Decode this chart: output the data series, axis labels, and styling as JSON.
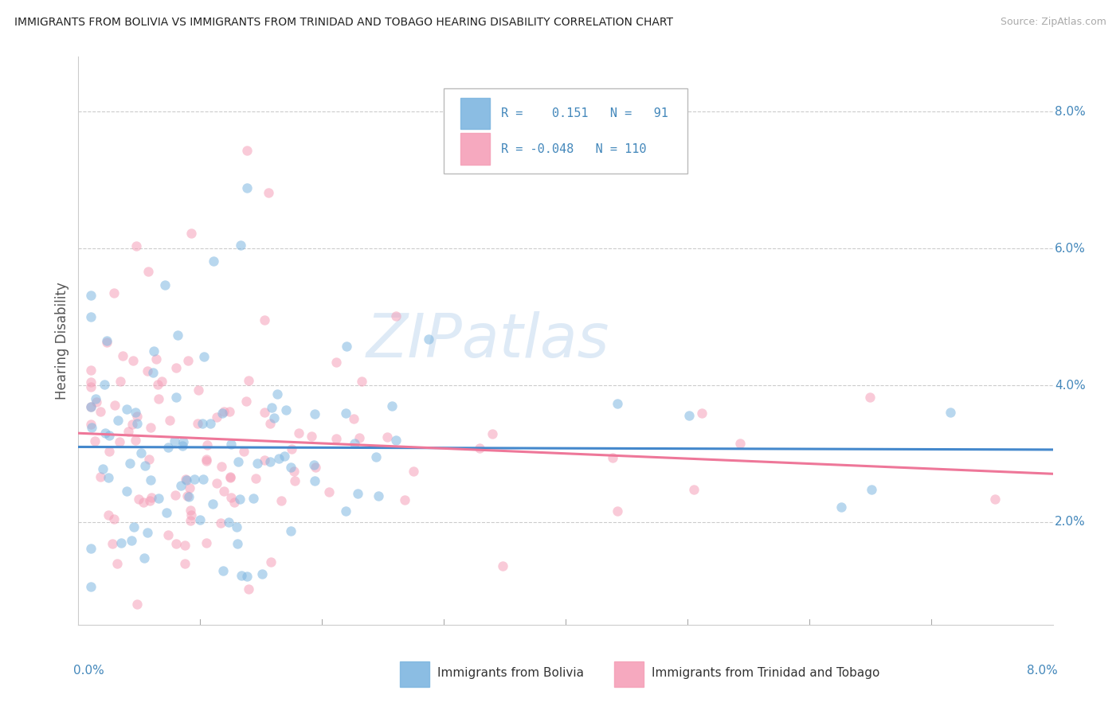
{
  "title": "IMMIGRANTS FROM BOLIVIA VS IMMIGRANTS FROM TRINIDAD AND TOBAGO HEARING DISABILITY CORRELATION CHART",
  "source": "Source: ZipAtlas.com",
  "ylabel": "Hearing Disability",
  "y_ticks": [
    0.02,
    0.04,
    0.06,
    0.08
  ],
  "y_tick_labels": [
    "2.0%",
    "4.0%",
    "6.0%",
    "8.0%"
  ],
  "xlim": [
    0.0,
    0.08
  ],
  "ylim": [
    0.005,
    0.088
  ],
  "color_bolivia": "#7EB6E0",
  "color_trinidad": "#F5A0B8",
  "line_color_bolivia": "#4488CC",
  "line_color_trinidad": "#EE7799",
  "scatter_alpha": 0.55,
  "scatter_size": 80,
  "watermark_text": "ZIPatlas",
  "legend_text_color": "#4488BB",
  "bolivia_N": 91,
  "trinidad_N": 110,
  "bolivia_R": 0.151,
  "trinidad_R": -0.048
}
